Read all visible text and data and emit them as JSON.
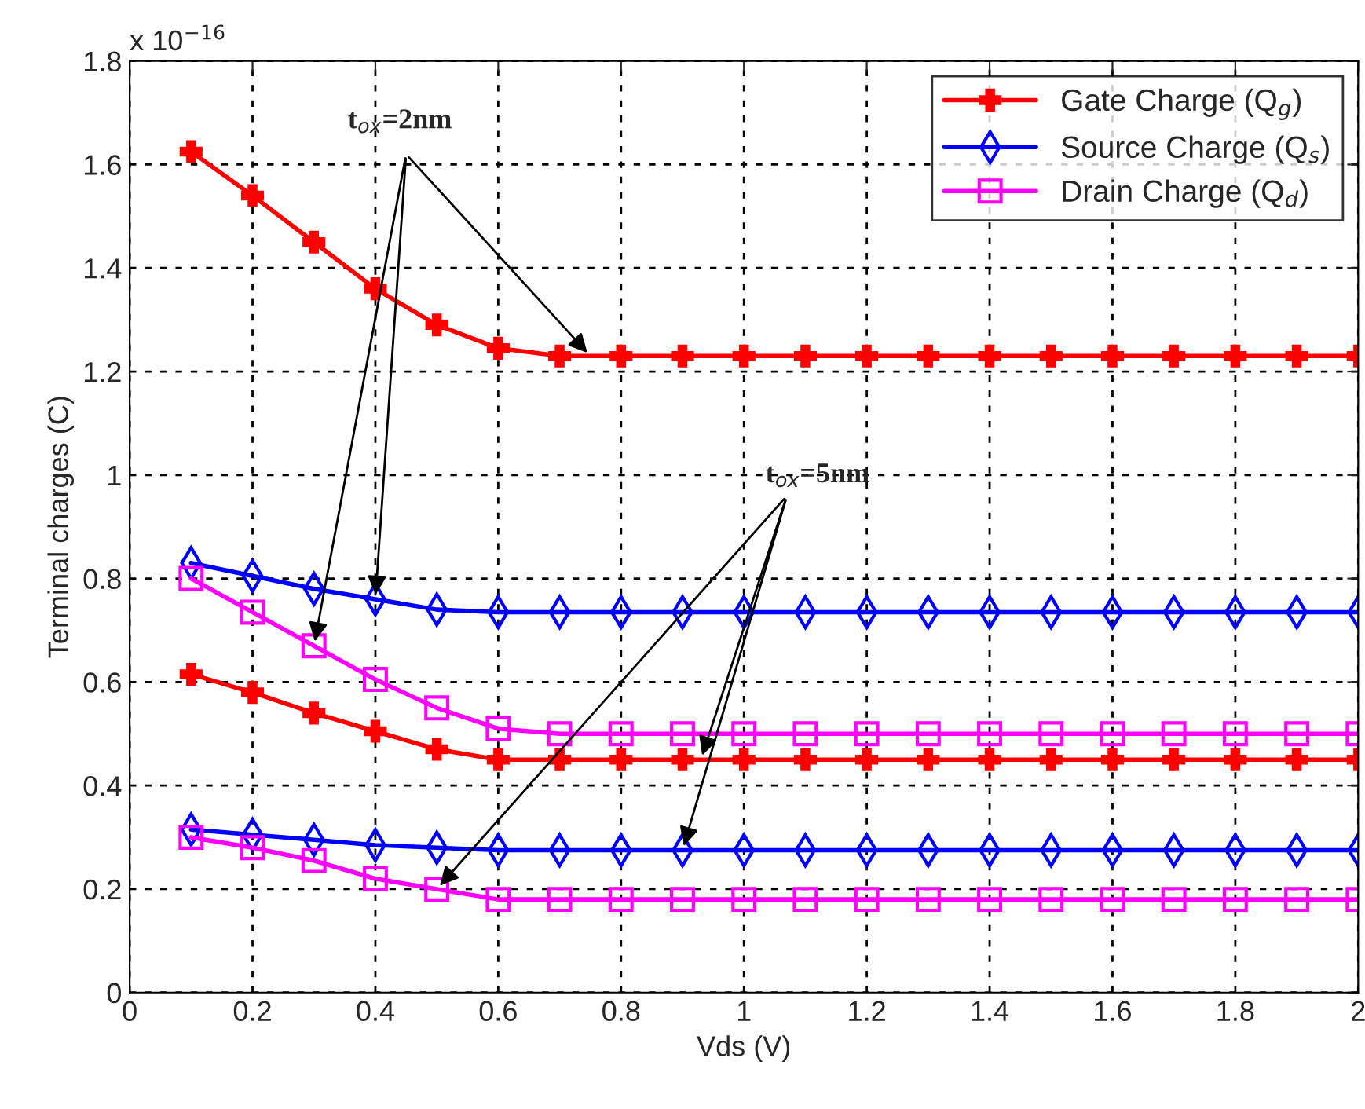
{
  "chart_data": {
    "type": "line",
    "xlabel": "Vds (V)",
    "ylabel": "Terminal charges (C)",
    "x": [
      0.1,
      0.2,
      0.3,
      0.4,
      0.5,
      0.6,
      0.7,
      0.8,
      0.9,
      1.0,
      1.1,
      1.2,
      1.3,
      1.4,
      1.5,
      1.6,
      1.7,
      1.8,
      1.9,
      2.0
    ],
    "series": [
      {
        "name": "Gate Charge (Q$_{g}$)",
        "color": "#ff0000",
        "marker": "cross",
        "values": [
          1.625,
          1.54,
          1.45,
          1.36,
          1.29,
          1.245,
          1.23,
          1.23,
          1.23,
          1.23,
          1.23,
          1.23,
          1.23,
          1.23,
          1.23,
          1.23,
          1.23,
          1.23,
          1.23,
          1.23
        ]
      },
      {
        "name": "Source Charge (Q$_{s}$)",
        "color": "#0000ff",
        "marker": "diamond",
        "values": [
          0.83,
          0.805,
          0.78,
          0.76,
          0.74,
          0.735,
          0.735,
          0.735,
          0.735,
          0.735,
          0.735,
          0.735,
          0.735,
          0.735,
          0.735,
          0.735,
          0.735,
          0.735,
          0.735,
          0.735
        ]
      },
      {
        "name": "Drain Charge (Q$_{d}$)",
        "color": "#ff00ff",
        "marker": "square",
        "values": [
          0.8,
          0.735,
          0.67,
          0.605,
          0.55,
          0.51,
          0.5,
          0.5,
          0.5,
          0.5,
          0.5,
          0.5,
          0.5,
          0.5,
          0.5,
          0.5,
          0.5,
          0.5,
          0.5,
          0.5
        ]
      },
      {
        "color": "#ff0000",
        "marker": "cross",
        "values": [
          0.615,
          0.58,
          0.54,
          0.505,
          0.47,
          0.45,
          0.45,
          0.45,
          0.45,
          0.45,
          0.45,
          0.45,
          0.45,
          0.45,
          0.45,
          0.45,
          0.45,
          0.45,
          0.45,
          0.45
        ]
      },
      {
        "color": "#0000ff",
        "marker": "diamond",
        "values": [
          0.315,
          0.305,
          0.295,
          0.285,
          0.28,
          0.275,
          0.275,
          0.275,
          0.275,
          0.275,
          0.275,
          0.275,
          0.275,
          0.275,
          0.275,
          0.275,
          0.275,
          0.275,
          0.275,
          0.275
        ]
      },
      {
        "color": "#ff00ff",
        "marker": "square",
        "values": [
          0.3,
          0.28,
          0.255,
          0.22,
          0.2,
          0.18,
          0.18,
          0.18,
          0.18,
          0.18,
          0.18,
          0.18,
          0.18,
          0.18,
          0.18,
          0.18,
          0.18,
          0.18,
          0.18,
          0.18
        ]
      }
    ],
    "xlim": [
      0,
      2
    ],
    "xticks": [
      0,
      0.2,
      0.4,
      0.6,
      0.8,
      1,
      1.2,
      1.4,
      1.6,
      1.8,
      2
    ],
    "ylim": [
      0,
      1.8
    ],
    "yticks": [
      0,
      0.2,
      0.4,
      0.6,
      0.8,
      1,
      1.2,
      1.4,
      1.6,
      1.8
    ],
    "grid": true,
    "legend": "top right",
    "line_style": "solid",
    "annotations": [
      "x 10$^{−16}$",
      {
        "text": "t$_{ox}$=2nm",
        "x": 0.75,
        "y": 1.23
      },
      {
        "text": "t$_{ox}$=5nm",
        "x": 0.93,
        "y": 0.45
      }
    ]
  }
}
